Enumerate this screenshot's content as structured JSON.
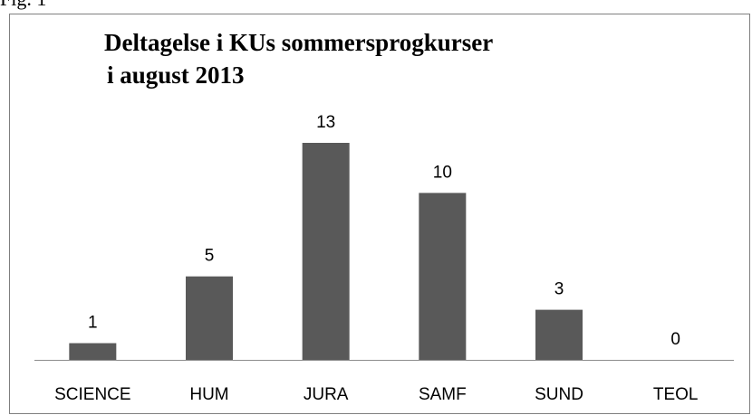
{
  "figure_label": "Fig. 1",
  "chart_data": {
    "type": "bar",
    "title": [
      "Deltagelse i KUs sommersprogkurser",
      "i august 2013"
    ],
    "categories": [
      "SCIENCE",
      "HUM",
      "JURA",
      "SAMF",
      "SUND",
      "TEOL"
    ],
    "values": [
      1,
      5,
      13,
      10,
      3,
      0
    ],
    "color": "#595959"
  }
}
